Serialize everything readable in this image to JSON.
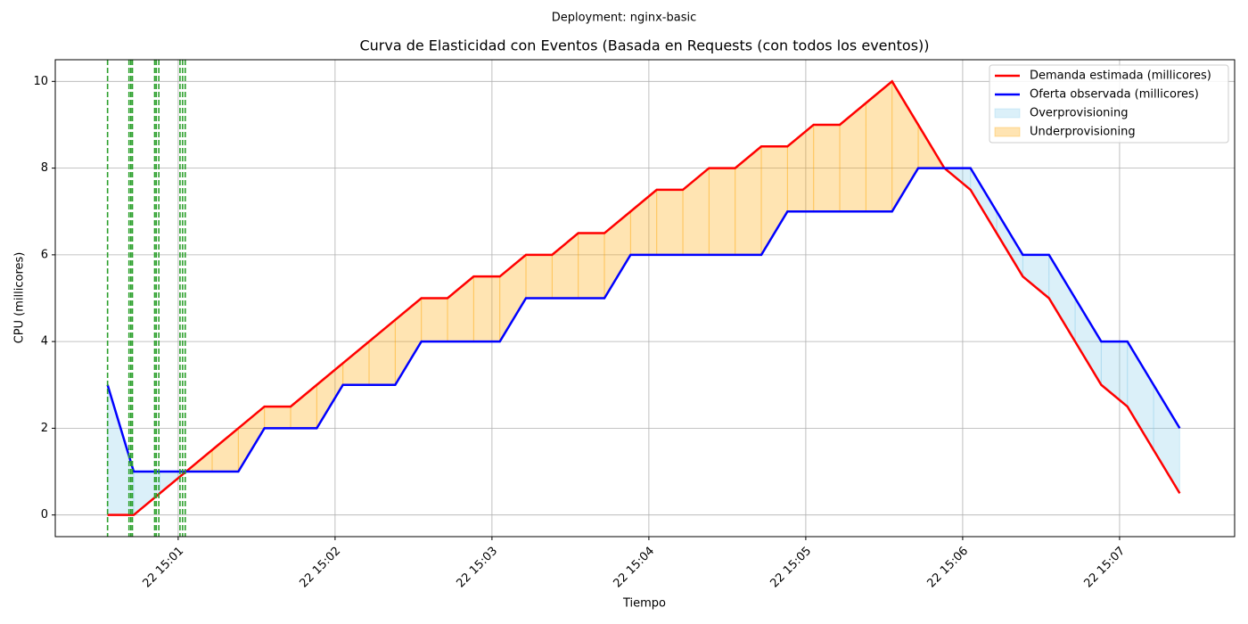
{
  "chart_data": {
    "type": "line",
    "suptitle": "Deployment: nginx-basic",
    "title": "Curva de Elasticidad con Eventos (Basada en Requests (con todos los eventos))",
    "xlabel": "Tiempo",
    "ylabel": "CPU (millicores)",
    "x": [
      "22 15:00:33",
      "22 15:00:43",
      "22 15:00:53",
      "22 15:01:03",
      "22 15:01:13",
      "22 15:01:23",
      "22 15:01:33",
      "22 15:01:43",
      "22 15:01:53",
      "22 15:02:03",
      "22 15:02:13",
      "22 15:02:23",
      "22 15:02:33",
      "22 15:02:43",
      "22 15:02:53",
      "22 15:03:03",
      "22 15:03:13",
      "22 15:03:23",
      "22 15:03:33",
      "22 15:03:43",
      "22 15:03:53",
      "22 15:04:03",
      "22 15:04:13",
      "22 15:04:23",
      "22 15:04:33",
      "22 15:04:43",
      "22 15:04:53",
      "22 15:05:03",
      "22 15:05:13",
      "22 15:05:23",
      "22 15:05:33",
      "22 15:05:43",
      "22 15:05:53",
      "22 15:06:03",
      "22 15:06:13",
      "22 15:06:23",
      "22 15:06:33",
      "22 15:06:43",
      "22 15:06:53",
      "22 15:07:03",
      "22 15:07:13",
      "22 15:07:23"
    ],
    "series": [
      {
        "name": "Demanda estimada (millicores)",
        "color": "#ff0000",
        "values": [
          0,
          0,
          0.5,
          1,
          1.5,
          2,
          2.5,
          2.5,
          3,
          3.5,
          4,
          4.5,
          5,
          5,
          5.5,
          5.5,
          6,
          6,
          6.5,
          6.5,
          7,
          7.5,
          7.5,
          8,
          8,
          8.5,
          8.5,
          9,
          9,
          9.5,
          10,
          9,
          8,
          7.5,
          6.5,
          5.5,
          5,
          4,
          3,
          2.5,
          1.5,
          0.5
        ]
      },
      {
        "name": "Oferta observada (millicores)",
        "color": "#0000ff",
        "values": [
          3,
          1,
          1,
          1,
          1,
          1,
          2,
          2,
          2,
          3,
          3,
          3,
          4,
          4,
          4,
          4,
          5,
          5,
          5,
          5,
          6,
          6,
          6,
          6,
          6,
          6,
          7,
          7,
          7,
          7,
          7,
          8,
          8,
          8,
          7,
          6,
          6,
          5,
          4,
          4,
          3,
          2
        ]
      }
    ],
    "fills": [
      {
        "name": "Overprovisioning",
        "color": "#87ceeb"
      },
      {
        "name": "Underprovisioning",
        "color": "#ffa500"
      }
    ],
    "events": {
      "color": "#2ca02c",
      "x": [
        "22 15:00:33",
        "22 15:00:41.2",
        "22 15:00:41.9",
        "22 15:00:42.5",
        "22 15:00:51",
        "22 15:00:51.6",
        "22 15:00:52.6",
        "22 15:01:00.7",
        "22 15:01:01.7",
        "22 15:01:02.7"
      ]
    },
    "xlim": [
      "22 15:00:13",
      "22 15:07:44"
    ],
    "xticks": [
      "22 15:01",
      "22 15:02",
      "22 15:03",
      "22 15:04",
      "22 15:05",
      "22 15:06",
      "22 15:07"
    ],
    "ylim": [
      -0.5,
      10.5
    ],
    "yticks": [
      0,
      2,
      4,
      6,
      8,
      10
    ],
    "grid": true,
    "legend": "upper right"
  }
}
